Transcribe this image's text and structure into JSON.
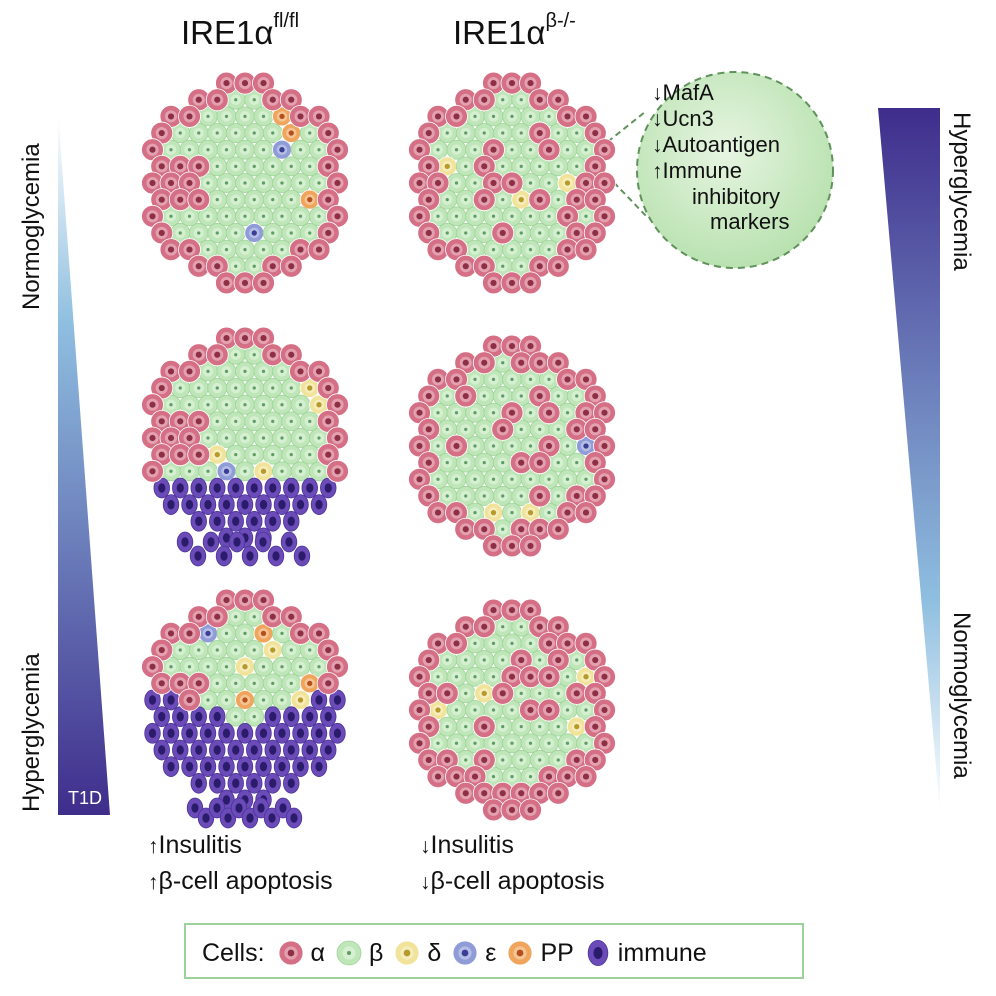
{
  "columns": {
    "left": {
      "title_base": "IRE1α",
      "title_sup": "fl/fl"
    },
    "right": {
      "title_base": "IRE1α",
      "title_sup": "β-/-"
    }
  },
  "left_gradient": {
    "top_label": "Normoglycemia",
    "bottom_label": "Hyperglycemia",
    "badge": "T1D"
  },
  "right_gradient": {
    "top_label": "Hyperglycemia",
    "bottom_label": "Normoglycemia"
  },
  "callout": {
    "lines": [
      {
        "arrow": "↓",
        "text": "MafA"
      },
      {
        "arrow": "↓",
        "text": "Ucn3"
      },
      {
        "arrow": "↓",
        "text": "Autoantigen"
      },
      {
        "arrow": "↑",
        "text": "Immune"
      }
    ],
    "continuation": [
      "inhibitory",
      "markers"
    ]
  },
  "effects": {
    "left": [
      {
        "arrow": "↑",
        "text": "Insulitis"
      },
      {
        "arrow": "↑",
        "text": "β-cell apoptosis"
      }
    ],
    "right": [
      {
        "arrow": "↓",
        "text": "Insulitis"
      },
      {
        "arrow": "↓",
        "text": "β-cell apoptosis"
      }
    ]
  },
  "legend": {
    "title": "Cells:",
    "items": [
      {
        "key": "alpha",
        "label": "α"
      },
      {
        "key": "beta",
        "label": "β"
      },
      {
        "key": "delta",
        "label": "δ"
      },
      {
        "key": "epsilon",
        "label": "ε"
      },
      {
        "key": "pp",
        "label": "PP"
      },
      {
        "key": "immune",
        "label": "immune"
      }
    ]
  },
  "colors": {
    "alpha": "#d56f85",
    "alpha_core": "#8d2f45",
    "beta": "#bfe6b8",
    "beta_core": "#5d9c62",
    "delta": "#f1e39a",
    "delta_core": "#b79a2c",
    "epsilon": "#8f9cd8",
    "epsilon_core": "#3a3f95",
    "pp": "#f0a55d",
    "pp_core": "#b4501e",
    "immune": "#6b4bb8",
    "immune_core": "#2b1b6b",
    "gradient_dark": "#3f2d8c",
    "gradient_light": "#b7dbea",
    "callout_fill": "#c7e9bf",
    "callout_border": "#5f915b"
  },
  "islets": [
    {
      "id": "left-normo",
      "immune_fraction": 0
    },
    {
      "id": "left-insulitis",
      "immune_fraction": 0.25
    },
    {
      "id": "left-t1d",
      "immune_fraction": 0.6
    },
    {
      "id": "right-top",
      "immune_fraction": 0
    },
    {
      "id": "right-middle",
      "immune_fraction": 0
    },
    {
      "id": "right-bottom",
      "immune_fraction": 0
    }
  ]
}
